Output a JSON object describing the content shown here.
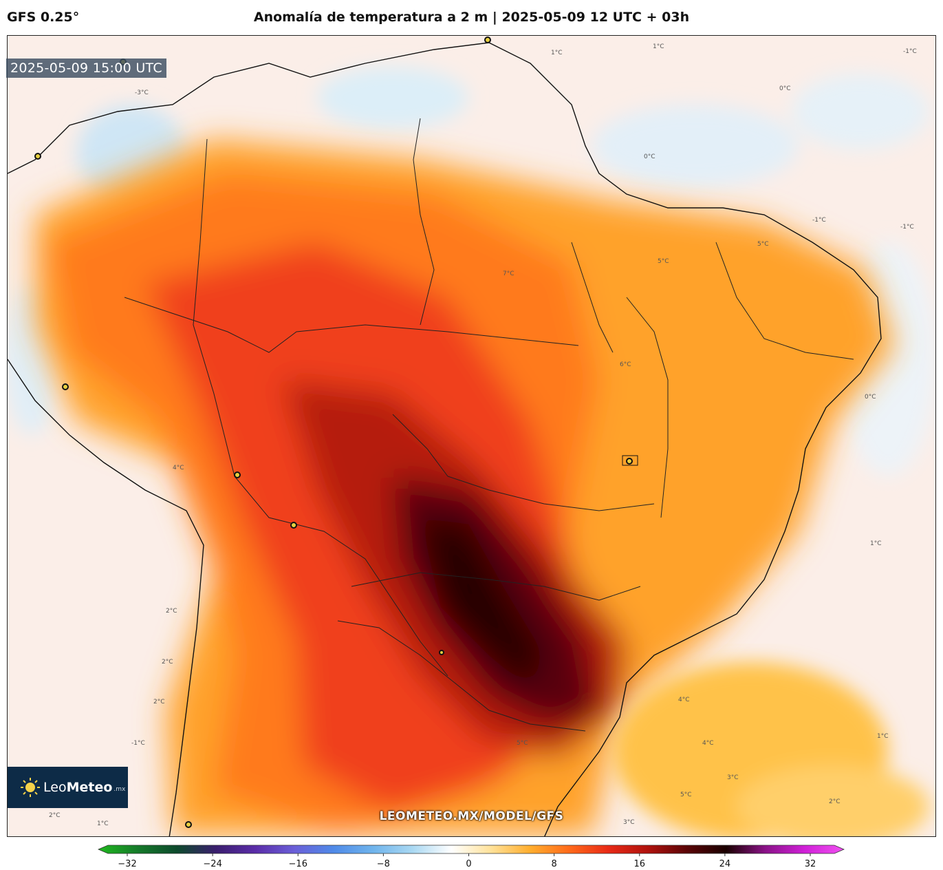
{
  "header": {
    "model": "GFS 0.25°",
    "title": "Anomalía de temperatura a 2 m | 2025-05-09 12 UTC + 03h"
  },
  "map": {
    "valid_time": "2025-05-09 15:00 UTC",
    "watermark": "LEOMETEO.MX/MODEL/GFS",
    "region": "South America (Brazil)",
    "contour_labels": [
      "1°C",
      "-1°C",
      "0°C",
      "-3°C",
      "1°C",
      "0°C",
      "-1°C",
      "5°C",
      "7°C",
      "5°C",
      "4°C",
      "2°C",
      "2°C",
      "2°C",
      "-1°C",
      "1°C",
      "-1°C",
      "2°C",
      "1°C",
      "4°C",
      "4°C",
      "5°C",
      "3°C",
      "5°C",
      "1°C",
      "2°C",
      "0°C",
      "3°C",
      "6°C"
    ]
  },
  "logo": {
    "name_light": "Leo",
    "name_bold": "Meteo",
    "suffix": ".mx"
  },
  "colorbar": {
    "ticks": [
      "−32",
      "−24",
      "−16",
      "−8",
      "0",
      "8",
      "16",
      "24",
      "32"
    ],
    "min": -32,
    "max": 32,
    "colors": [
      "#1fb91f",
      "#157a2a",
      "#0d4a2c",
      "#3a1e6e",
      "#5a2ca8",
      "#6a5fd8",
      "#4f8ae8",
      "#6fb4ec",
      "#a9d8f2",
      "#ffffff",
      "#ffe29a",
      "#ffae2e",
      "#ff6a1a",
      "#e82a16",
      "#b0120d",
      "#5a0406",
      "#1a0000",
      "#8a1288",
      "#d020d8",
      "#f050f0"
    ]
  }
}
